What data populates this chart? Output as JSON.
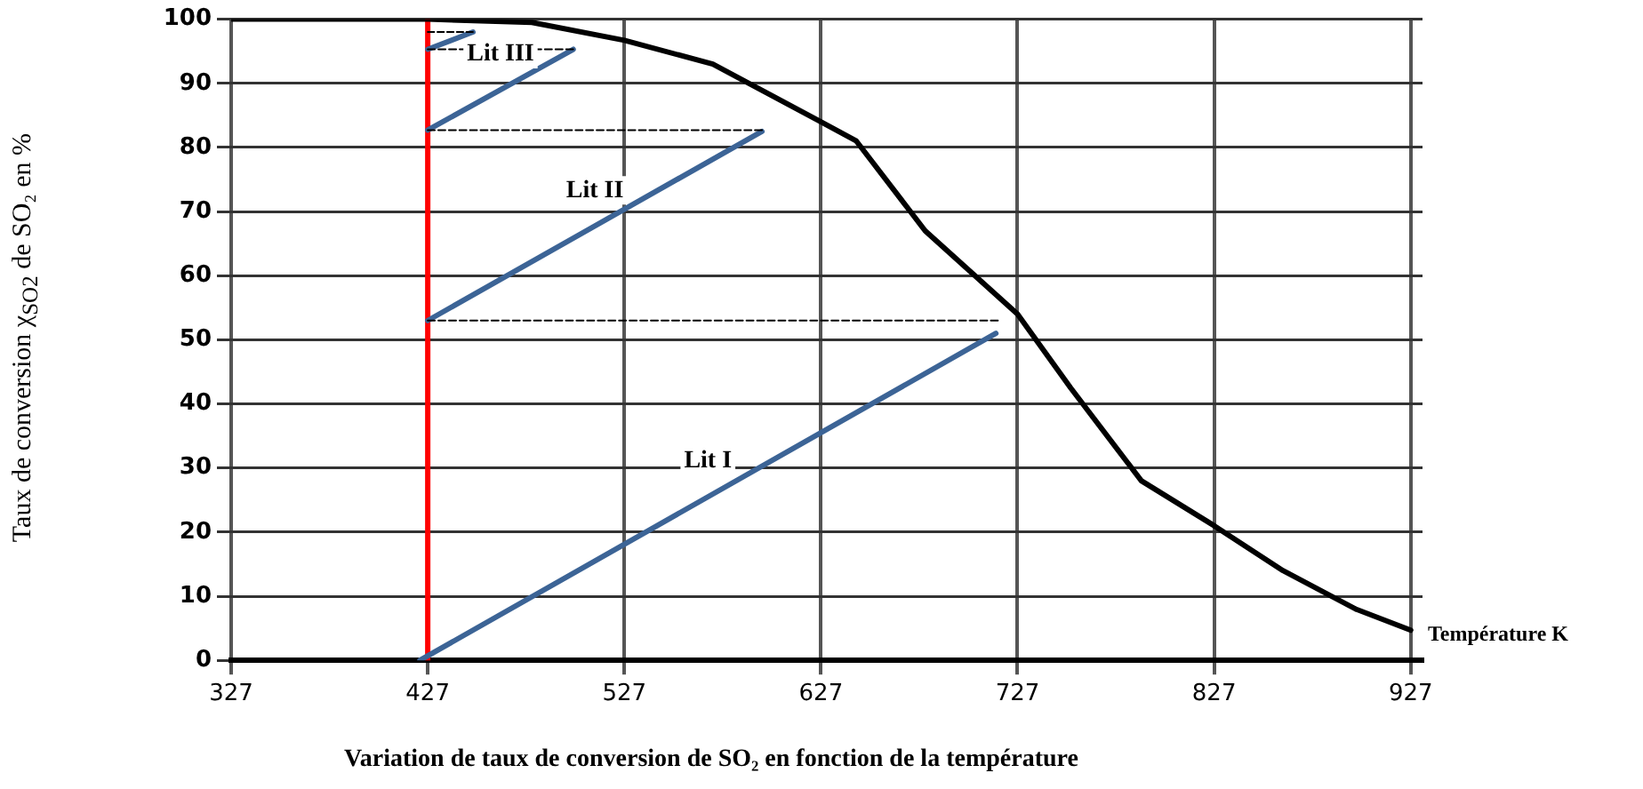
{
  "chart_data": {
    "type": "line",
    "title": "Variation de taux de conversion de SO₂ en fonction de la température",
    "xlabel": "Température K",
    "ylabel": "Taux de conversion χ$_{SO2}$ de SO₂ en %",
    "xlim": [
      327,
      933
    ],
    "xticks": [
      327,
      427,
      527,
      627,
      727,
      827,
      927
    ],
    "ylim": [
      0,
      100
    ],
    "yticks": [
      0,
      10,
      20,
      30,
      40,
      50,
      60,
      70,
      80,
      90,
      100
    ],
    "grid": true,
    "legend": false,
    "marker": "none",
    "series": [
      {
        "color": "#000000",
        "x": [
          327,
          427,
          480,
          527,
          572,
          627,
          645,
          680,
          727,
          754,
          790,
          827,
          862,
          899,
          927
        ],
        "values": [
          100,
          100,
          99.5,
          96.7,
          93,
          84,
          81,
          67,
          54,
          42.5,
          28,
          21,
          14,
          8,
          4.7
        ]
      },
      {
        "color": "#000000",
        "line_style": "dashed",
        "x": [
          427,
          717
        ],
        "values": [
          53,
          53
        ]
      },
      {
        "color": "#000000",
        "line_style": "dashed",
        "x": [
          427,
          597
        ],
        "values": [
          82.7,
          82.7
        ]
      },
      {
        "color": "#000000",
        "line_style": "dashed",
        "x": [
          427,
          501
        ],
        "values": [
          95.3,
          95.3
        ]
      },
      {
        "color": "#000000",
        "line_style": "dashed",
        "x": [
          427,
          450
        ],
        "values": [
          98,
          98
        ]
      },
      {
        "name": "Lit I",
        "color": "#3c6496",
        "x": [
          423,
          716
        ],
        "values": [
          0,
          51
        ]
      },
      {
        "name": "Lit II",
        "color": "#3c6496",
        "x": [
          427,
          597
        ],
        "values": [
          53,
          82.5
        ]
      },
      {
        "name": "Lit III",
        "color": "#3c6496",
        "x": [
          427,
          501
        ],
        "values": [
          82.7,
          95.3
        ]
      },
      {
        "color": "#3c6496",
        "x": [
          427,
          450
        ],
        "values": [
          95.3,
          98
        ]
      }
    ],
    "ref_lines": [
      {
        "axis": "x",
        "value": 427,
        "color": "#ff0000"
      }
    ]
  }
}
